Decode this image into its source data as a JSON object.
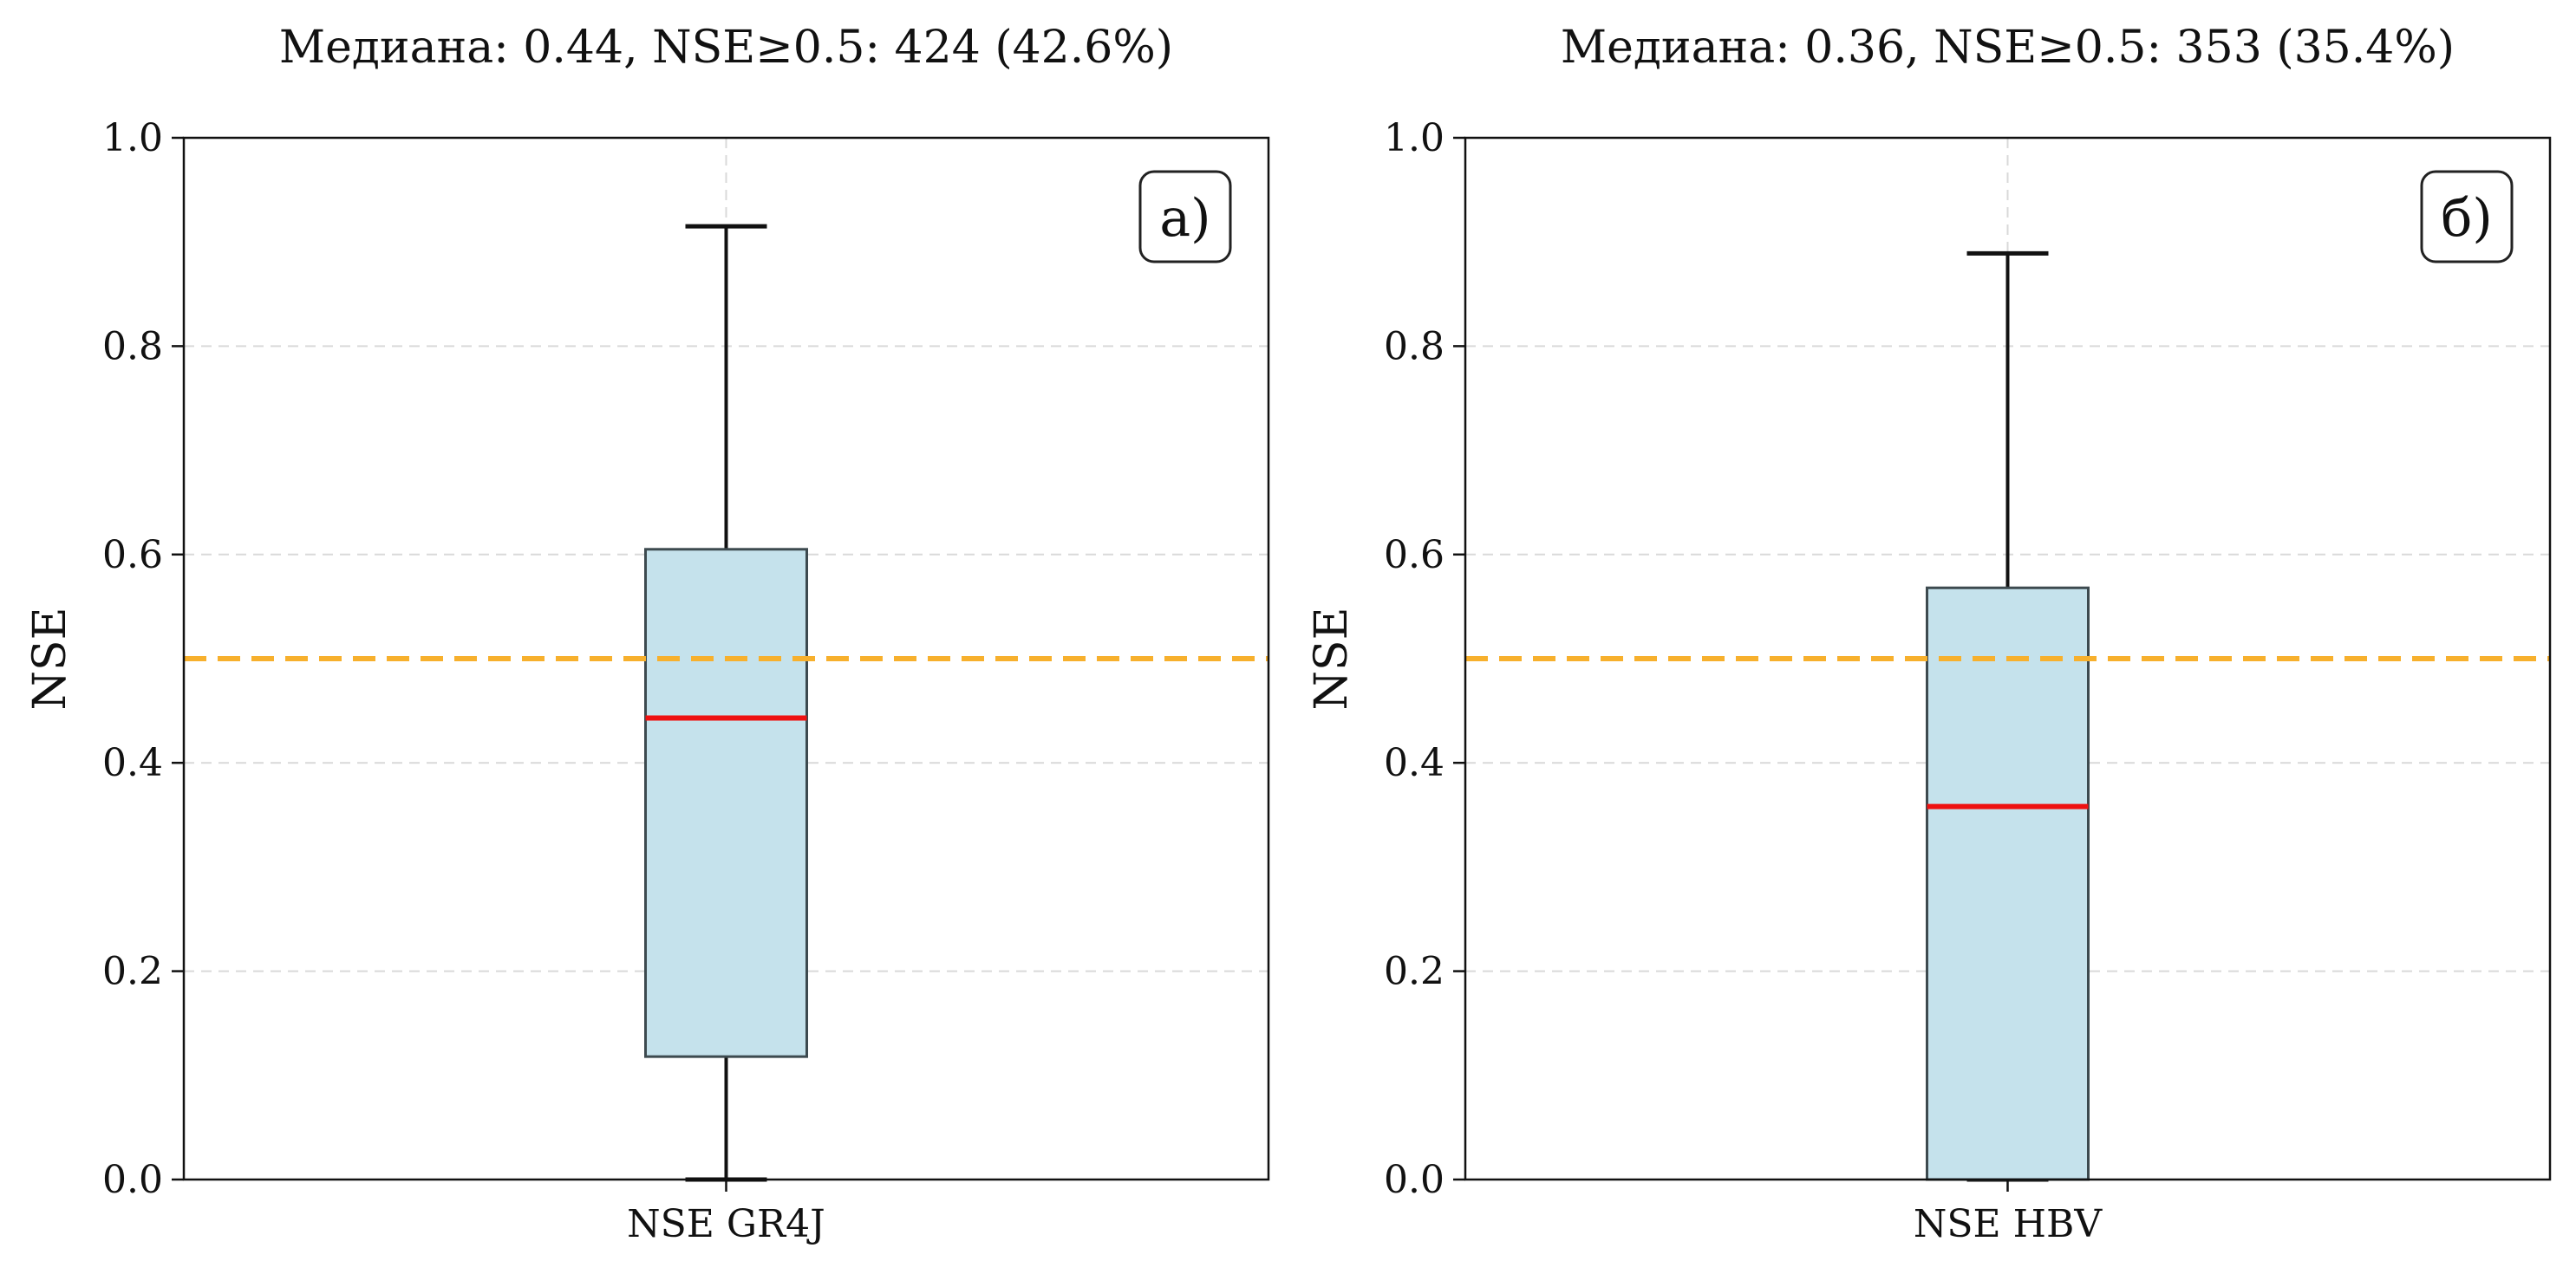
{
  "chart_data": [
    {
      "type": "box",
      "panel_label": "а)",
      "title": "Медиана: 0.44, NSE≥0.5: 424 (42.6%)",
      "ylabel": "NSE",
      "ylim": [
        0,
        1
      ],
      "yticks": [
        "0.0",
        "0.2",
        "0.4",
        "0.6",
        "0.8",
        "1.0"
      ],
      "category": "NSE GR4J",
      "box": {
        "whisker_low": 0.0,
        "q1": 0.118,
        "median": 0.443,
        "q3": 0.605,
        "whisker_high": 0.915
      },
      "threshold": 0.5,
      "grid": true,
      "colors": {
        "box_fill": "#c5e2ec",
        "box_edge": "#3d4a4f",
        "median": "#ee1111",
        "threshold": "#f7b02d",
        "grid": "#d9d9d9"
      }
    },
    {
      "type": "box",
      "panel_label": "б)",
      "title": "Медиана: 0.36, NSE≥0.5: 353 (35.4%)",
      "ylabel": "NSE",
      "ylim": [
        0,
        1
      ],
      "yticks": [
        "0.0",
        "0.2",
        "0.4",
        "0.6",
        "0.8",
        "1.0"
      ],
      "category": "NSE HBV",
      "box": {
        "whisker_low": 0.0,
        "q1": 0.0,
        "median": 0.358,
        "q3": 0.568,
        "whisker_high": 0.889
      },
      "threshold": 0.5,
      "grid": true,
      "colors": {
        "box_fill": "#c5e2ec",
        "box_edge": "#3d4a4f",
        "median": "#ee1111",
        "threshold": "#f7b02d",
        "grid": "#d9d9d9"
      }
    }
  ]
}
